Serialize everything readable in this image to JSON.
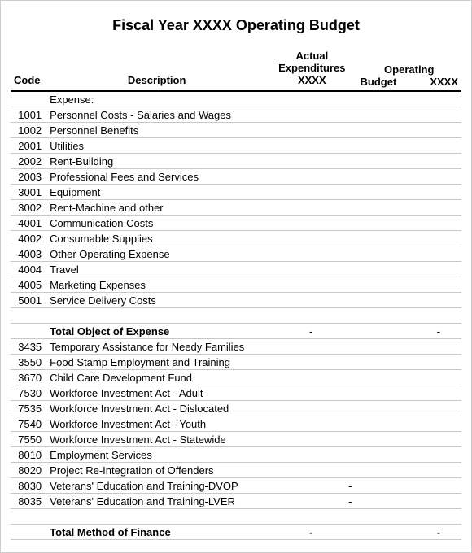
{
  "title": "Fiscal Year XXXX Operating Budget",
  "columns": {
    "code": "Code",
    "desc": "Description",
    "actual": "Actual Expenditures XXXX",
    "operating": "Operating",
    "budget": "Budget",
    "xxxx": "XXXX"
  },
  "rows": [
    {
      "code": "",
      "desc": "Expense:",
      "actual": "",
      "op1": "",
      "op2": "",
      "bold": false
    },
    {
      "code": "1001",
      "desc": "Personnel Costs - Salaries and Wages",
      "actual": "",
      "op1": "",
      "op2": ""
    },
    {
      "code": "1002",
      "desc": "Personnel Benefits",
      "actual": "",
      "op1": "",
      "op2": ""
    },
    {
      "code": "2001",
      "desc": "Utilities",
      "actual": "",
      "op1": "",
      "op2": ""
    },
    {
      "code": "2002",
      "desc": "Rent-Building",
      "actual": "",
      "op1": "",
      "op2": ""
    },
    {
      "code": "2003",
      "desc": "Professional Fees and Services",
      "actual": "",
      "op1": "",
      "op2": ""
    },
    {
      "code": "3001",
      "desc": "Equipment",
      "actual": "",
      "op1": "",
      "op2": ""
    },
    {
      "code": "3002",
      "desc": "Rent-Machine and other",
      "actual": "",
      "op1": "",
      "op2": ""
    },
    {
      "code": "4001",
      "desc": "Communication Costs",
      "actual": "",
      "op1": "",
      "op2": ""
    },
    {
      "code": "4002",
      "desc": "Consumable Supplies",
      "actual": "",
      "op1": "",
      "op2": ""
    },
    {
      "code": "4003",
      "desc": "Other Operating Expense",
      "actual": "",
      "op1": "",
      "op2": ""
    },
    {
      "code": "4004",
      "desc": "Travel",
      "actual": "",
      "op1": "",
      "op2": ""
    },
    {
      "code": "4005",
      "desc": "Marketing Expenses",
      "actual": "",
      "op1": "",
      "op2": ""
    },
    {
      "code": "5001",
      "desc": "Service Delivery Costs",
      "actual": "",
      "op1": "",
      "op2": ""
    },
    {
      "blank": true
    },
    {
      "code": "",
      "desc": "Total Object of Expense",
      "actual": "-",
      "op1": "",
      "op2": "-",
      "bold": true
    },
    {
      "code": "3435",
      "desc": "Temporary Assistance for Needy Families",
      "actual": "",
      "op1": "",
      "op2": ""
    },
    {
      "code": "3550",
      "desc": "Food Stamp Employment and Training",
      "actual": "",
      "op1": "",
      "op2": ""
    },
    {
      "code": "3670",
      "desc": "Child Care Development Fund",
      "actual": "",
      "op1": "",
      "op2": ""
    },
    {
      "code": "7530",
      "desc": "Workforce Investment Act - Adult",
      "actual": "",
      "op1": "",
      "op2": ""
    },
    {
      "code": "7535",
      "desc": "Workforce Investment Act - Dislocated",
      "actual": "",
      "op1": "",
      "op2": ""
    },
    {
      "code": "7540",
      "desc": "Workforce Investment Act - Youth",
      "actual": "",
      "op1": "",
      "op2": ""
    },
    {
      "code": "7550",
      "desc": "Workforce Investment Act - Statewide",
      "actual": "",
      "op1": "",
      "op2": ""
    },
    {
      "code": "8010",
      "desc": "Employment Services",
      "actual": "",
      "op1": "",
      "op2": ""
    },
    {
      "code": "8020",
      "desc": "Project Re-Integration of Offenders",
      "actual": "",
      "op1": "",
      "op2": ""
    },
    {
      "code": "8030",
      "desc": "Veterans' Education and Training-DVOP",
      "actual": "-",
      "op1": "",
      "op2": ""
    },
    {
      "code": "8035",
      "desc": "Veterans' Education and Training-LVER",
      "actual": "-",
      "op1": "",
      "op2": ""
    },
    {
      "blank": true
    },
    {
      "code": "",
      "desc": "Total Method of Finance",
      "actual": "-",
      "op1": "",
      "op2": "-",
      "bold": true
    }
  ]
}
